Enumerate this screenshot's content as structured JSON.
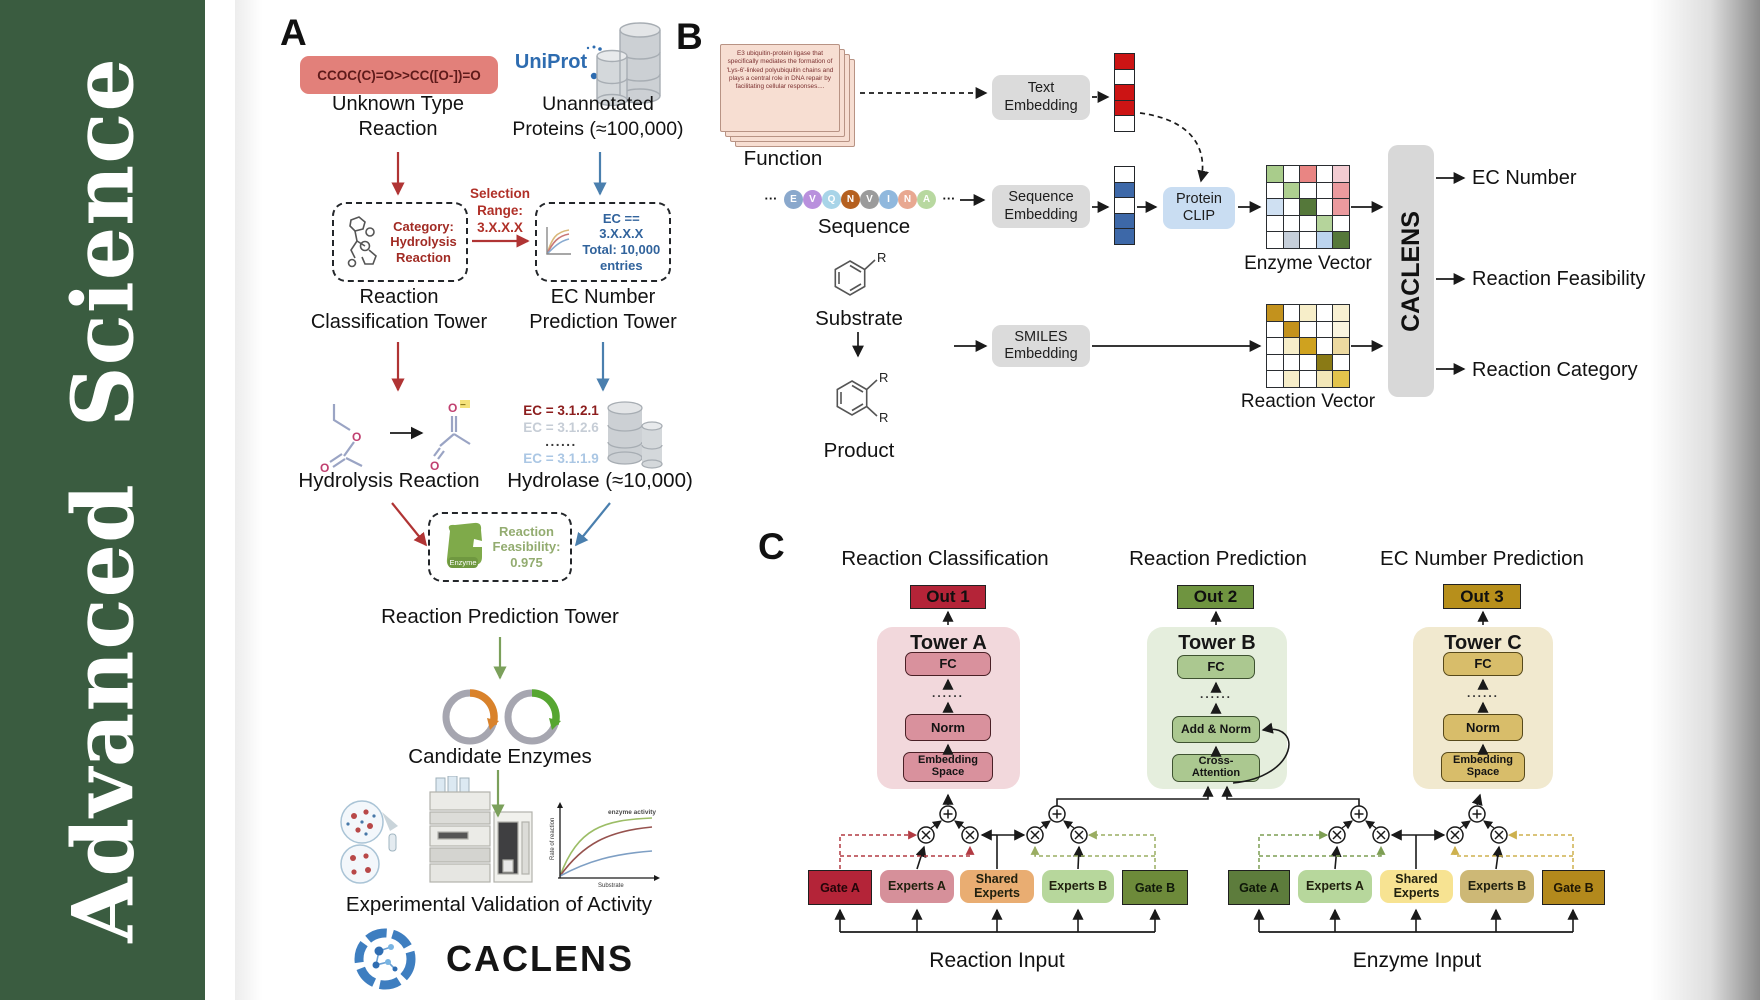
{
  "sidebar": {
    "journal": "Advanced Science"
  },
  "panelA": {
    "label": "A",
    "smiles": "CCOC(C)=O>>CC([O-])=O",
    "unknown_reaction": "Unknown Type\nReaction",
    "uniprot": "UniProt",
    "unannotated": "Unannotated\nProteins (≈100,000)",
    "category_box": "Category:\nHydrolysis\nReaction",
    "selection": "Selection\nRange:\n3.X.X.X",
    "ec_box": "EC == 3.X.X.X\nTotal: 10,000\nentries",
    "classification_tower": "Reaction\nClassification Tower",
    "ec_tower": "EC Number\nPrediction Tower",
    "ec_list": [
      "EC = 3.1.2.1",
      "EC = 3.1.2.6",
      "......",
      "EC = 3.1.1.9"
    ],
    "hydrolysis": "Hydrolysis Reaction",
    "hydrolase": "Hydrolase (≈10,000)",
    "enzyme_label": "Enzyme",
    "feasibility": "Reaction\nFeasibility:\n0.975",
    "prediction_tower": "Reaction Prediction Tower",
    "candidates": "Candidate Enzymes",
    "activity_plot": {
      "ylabel": "Rate of reaction",
      "xlabel": "Substrate",
      "annotation": "enzyme activity"
    },
    "validation": "Experimental Validation of Activity",
    "brand": "CACLENS"
  },
  "panelB": {
    "label": "B",
    "function_card": "E3 ubiquitin-protein ligase that specifically mediates the formation of 'Lys-6'-linked polyubiquitin chains and plays a central role in DNA repair by facilitating cellular responses....",
    "function": "Function",
    "ellipsis": "···",
    "sequence_letters": [
      "E",
      "V",
      "Q",
      "N",
      "V",
      "I",
      "N",
      "A"
    ],
    "sequence_colors": [
      "#8aa8cc",
      "#b990dd",
      "#a8d4e8",
      "#b5601f",
      "#9b9b9b",
      "#90b8dd",
      "#e8a891",
      "#b8d8a0"
    ],
    "sequence": "Sequence",
    "substrate": "Substrate",
    "product": "Product",
    "r_label": "R",
    "text_embedding": "Text\nEmbedding",
    "sequence_embedding": "Sequence\nEmbedding",
    "smiles_embedding": "SMILES\nEmbedding",
    "protein_clip": "Protein\nCLIP",
    "text_vector": [
      "#cc1414",
      "#ffffff",
      "#cc1414",
      "#cc1414",
      "#ffffff"
    ],
    "sequence_vector": [
      "#ffffff",
      "#3d68a8",
      "#ffffff",
      "#3d68a8",
      "#3d68a8"
    ],
    "enzyme_matrix": [
      [
        "#a9cc8b",
        "#ffffff",
        "#e98583",
        "#ffffff",
        "#f3ccd2"
      ],
      [
        "#ffffff",
        "#aecf90",
        "#ffffff",
        "#ffffff",
        "#eb9a9e"
      ],
      [
        "#cfe0f2",
        "#ffffff",
        "#55783a",
        "#ffffff",
        "#eb9a9e"
      ],
      [
        "#ffffff",
        "#ffffff",
        "#ffffff",
        "#b5d49b",
        "#ffffff"
      ],
      [
        "#ffffff",
        "#c6cfda",
        "#ffffff",
        "#bcd4ee",
        "#55783a"
      ]
    ],
    "reaction_matrix": [
      [
        "#c3921d",
        "#ffffff",
        "#f7eec9",
        "#ffffff",
        "#f8f0d2"
      ],
      [
        "#ffffff",
        "#c3921d",
        "#ffffff",
        "#ffffff",
        "#faf5e0"
      ],
      [
        "#ffffff",
        "#f7eec9",
        "#cfa21f",
        "#ffffff",
        "#ecd9a0"
      ],
      [
        "#ffffff",
        "#ffffff",
        "#ffffff",
        "#8a7a15",
        "#ffffff"
      ],
      [
        "#ffffff",
        "#f7eec9",
        "#ffffff",
        "#f3e7b8",
        "#e3c44c"
      ]
    ],
    "enzyme_vector": "Enzyme Vector",
    "reaction_vector": "Reaction Vector",
    "model": "CACLENS",
    "outputs": [
      "EC Number",
      "Reaction Feasibility",
      "Reaction Category"
    ]
  },
  "panelC": {
    "label": "C",
    "headings": [
      "Reaction Classification",
      "Reaction Prediction",
      "EC Number Prediction"
    ],
    "outs": [
      "Out 1",
      "Out 2",
      "Out 3"
    ],
    "towerA": {
      "name": "Tower A",
      "fc": "FC",
      "dots": "......",
      "norm": "Norm",
      "embed": "Embedding\nSpace"
    },
    "towerB": {
      "name": "Tower B",
      "fc": "FC",
      "dots": "......",
      "norm": "Add & Norm",
      "attn": "Cross-\nAttention"
    },
    "towerC": {
      "name": "Tower C",
      "fc": "FC",
      "dots": "......",
      "norm": "Norm",
      "embed": "Embedding\nSpace"
    },
    "left_group": {
      "gate_a": "Gate A",
      "experts_a": "Experts A",
      "shared": "Shared\nExperts",
      "experts_b": "Experts B",
      "gate_b": "Gate B",
      "input": "Reaction Input"
    },
    "right_group": {
      "gate_a": "Gate A",
      "experts_a": "Experts A",
      "shared": "Shared\nExperts",
      "experts_b": "Experts B",
      "gate_b": "Gate B",
      "input": "Enzyme Input"
    }
  }
}
